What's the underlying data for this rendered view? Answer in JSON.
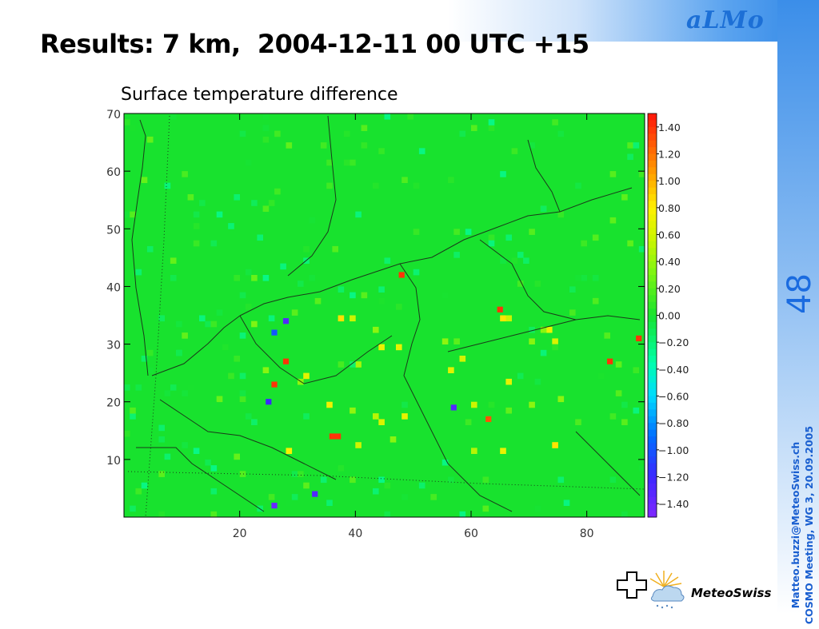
{
  "slide": {
    "title": "Results: 7 km,  2004-12-11 00 UTC +15",
    "brand": "aLMo",
    "slide_number": "48",
    "footer_email": "Matteo.buzzi@MeteoSwiss.ch",
    "footer_meeting": "COSMO Meeting, WG 3, 20.09.2005",
    "logo_text": "MeteoSwiss"
  },
  "chart_data": {
    "type": "heatmap",
    "title": "Surface temperature difference",
    "x_ticks": [
      "20",
      "40",
      "60",
      "80"
    ],
    "x_tick_values": [
      20,
      40,
      60,
      80
    ],
    "y_ticks": [
      "70",
      "60",
      "50",
      "40",
      "30",
      "20",
      "10"
    ],
    "y_tick_values": [
      70,
      60,
      50,
      40,
      30,
      20,
      10
    ],
    "xlim": [
      0,
      90
    ],
    "ylim": [
      0,
      70
    ],
    "colorbar": {
      "labels": [
        "1.40",
        "1.20",
        "1.00",
        "0.80",
        "0.60",
        "0.40",
        "0.20",
        "0.00",
        "−0.20",
        "−0.40",
        "−0.60",
        "−0.80",
        "−1.00",
        "−1.20",
        "−1.40"
      ],
      "values": [
        1.4,
        1.2,
        1.0,
        0.8,
        0.6,
        0.4,
        0.2,
        0.0,
        -0.2,
        -0.4,
        -0.6,
        -0.8,
        -1.0,
        -1.2,
        -1.4
      ],
      "range": [
        -1.5,
        1.5
      ]
    },
    "highlights": [
      {
        "x": 48,
        "y": 42,
        "value": 1.4
      },
      {
        "x": 65,
        "y": 36,
        "value": 1.4
      },
      {
        "x": 84,
        "y": 27,
        "value": 1.4
      },
      {
        "x": 89,
        "y": 31,
        "value": 1.4
      },
      {
        "x": 28,
        "y": 27,
        "value": 1.4
      },
      {
        "x": 26,
        "y": 23,
        "value": 1.4
      },
      {
        "x": 37,
        "y": 14,
        "value": 1.4
      },
      {
        "x": 36,
        "y": 14,
        "value": 1.4
      },
      {
        "x": 28,
        "y": 34,
        "value": -1.3
      },
      {
        "x": 26,
        "y": 32,
        "value": -1.0
      },
      {
        "x": 25,
        "y": 20,
        "value": -1.2
      },
      {
        "x": 57,
        "y": 19,
        "value": -1.3
      },
      {
        "x": 33,
        "y": 4,
        "value": -1.3
      },
      {
        "x": 26,
        "y": 2,
        "value": -1.4
      },
      {
        "x": 63,
        "y": 17,
        "value": 1.3
      }
    ]
  },
  "colors": {
    "field": "#18e22e",
    "title": "#000000",
    "accent": "#1a6be0"
  }
}
